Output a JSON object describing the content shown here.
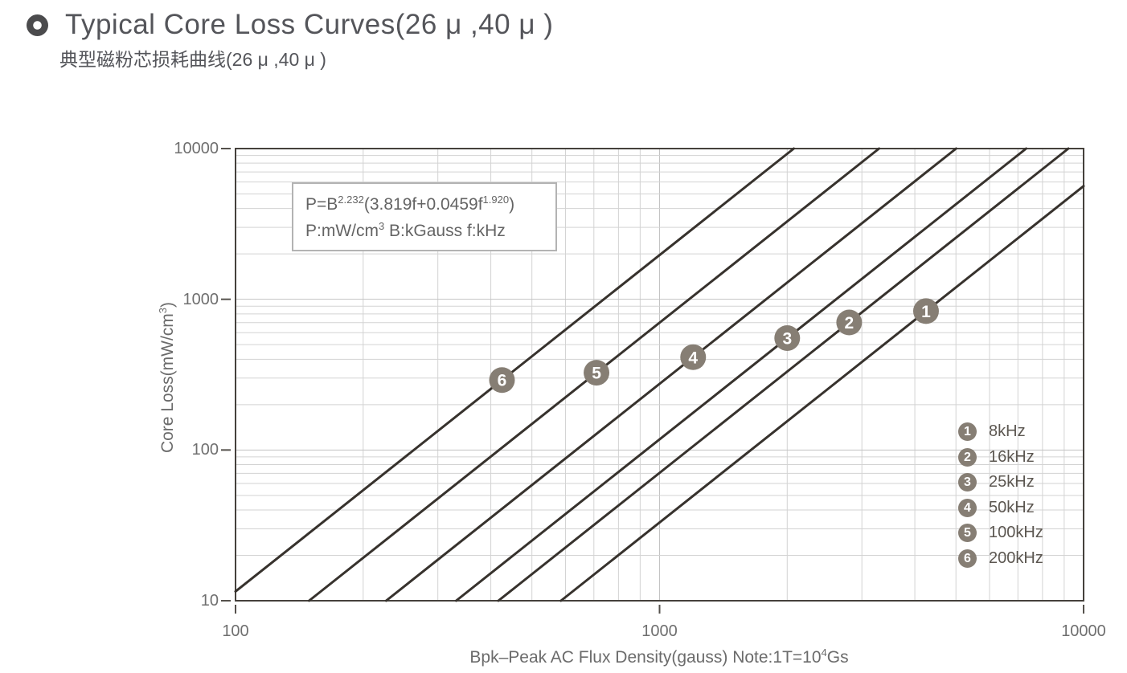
{
  "header": {
    "title": "Typical Core Loss Curves(26 μ ,40 μ )",
    "subtitle_cn": "典型磁粉芯损耗曲线(26 μ ,40 μ )"
  },
  "formula": {
    "p1": "P=B",
    "sup1": "2.232",
    "p2": "(3.819f+0.0459f",
    "sup2": "1.920",
    "p3": ")",
    "u1": "P:mW/cm",
    "usup": "3",
    "u2": "  B:kGauss  f:kHz"
  },
  "axes": {
    "y_label_main": "Core Loss(mW/cm",
    "y_label_sup": "3",
    "y_label_end": ")",
    "x_label_main": "Bpk–Peak AC Flux Density(gauss) Note:1T=10",
    "x_label_sup": "4",
    "x_label_end": "Gs"
  },
  "chart_data": {
    "type": "line",
    "title": "Typical Core Loss Curves(26μ,40μ)",
    "xlabel": "Bpk-Peak AC Flux Density(gauss)",
    "ylabel": "Core Loss(mW/cm3)",
    "x_axis": {
      "scale": "log",
      "min": 100,
      "max": 10000,
      "tick_values": [
        100,
        1000,
        10000
      ],
      "tick_labels": [
        "100",
        "1000",
        "10000"
      ],
      "note": "1T=10^4 Gs"
    },
    "y_axis": {
      "scale": "log",
      "min": 10,
      "max": 10000,
      "tick_values": [
        10,
        100,
        1000,
        10000
      ],
      "tick_labels": [
        "10",
        "100",
        "1000",
        "10000"
      ]
    },
    "grid": "log minor gridlines on, both axes",
    "legend_position": "inside lower right",
    "model": {
      "formula": "P = B^2.232 * (3.819f + 0.0459f^1.920)",
      "units": "P:mW/cm3  B:kGauss  f:kHz",
      "b_exponent": 2.232,
      "f_linear_coef": 3.819,
      "f_power_coef": 0.0459,
      "f_exponent": 1.92
    },
    "series": [
      {
        "num": "1",
        "label": "8kHz",
        "f_khz": 8,
        "marker_b_gauss": 4250
      },
      {
        "num": "2",
        "label": "16kHz",
        "f_khz": 16,
        "marker_b_gauss": 2800
      },
      {
        "num": "3",
        "label": "25kHz",
        "f_khz": 25,
        "marker_b_gauss": 2000
      },
      {
        "num": "4",
        "label": "50kHz",
        "f_khz": 50,
        "marker_b_gauss": 1200
      },
      {
        "num": "5",
        "label": "100kHz",
        "f_khz": 100,
        "marker_b_gauss": 710
      },
      {
        "num": "6",
        "label": "200kHz",
        "f_khz": 200,
        "marker_b_gauss": 425
      }
    ]
  },
  "colors": {
    "curve": "#37322d",
    "marker_fill": "#867e74",
    "marker_text": "#ffffff",
    "grid_minor": "#d3d3d3",
    "grid_decade": "#c3c3c3",
    "frame": "#45413c",
    "tick": "#55514c"
  }
}
